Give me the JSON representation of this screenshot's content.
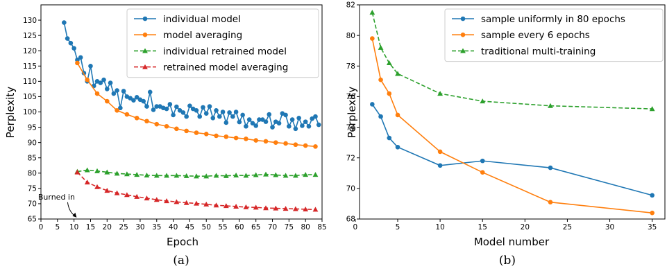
{
  "chart_data": [
    {
      "type": "line",
      "caption": "(a)",
      "xlabel": "Epoch",
      "ylabel": "Perplexity",
      "xlim": [
        0,
        85
      ],
      "ylim": [
        65,
        135
      ],
      "xticks": [
        "0",
        "5",
        "10",
        "15",
        "20",
        "25",
        "30",
        "35",
        "40",
        "45",
        "50",
        "55",
        "60",
        "65",
        "70",
        "75",
        "80",
        "85"
      ],
      "yticks": [
        "65",
        "70",
        "75",
        "80",
        "85",
        "90",
        "95",
        "100",
        "105",
        "110",
        "115",
        "120",
        "125",
        "130"
      ],
      "legend_position": "upper right",
      "annotation": {
        "text": "Burned in",
        "points_to": [
          11,
          65.5
        ]
      },
      "series": [
        {
          "name": "individual model",
          "color": "#1f77b4",
          "marker": "circle",
          "linestyle": "solid",
          "x": [
            7,
            8,
            9,
            10,
            11,
            12,
            13,
            14,
            15,
            16,
            17,
            18,
            19,
            20,
            21,
            22,
            23,
            24,
            25,
            26,
            27,
            28,
            29,
            30,
            31,
            32,
            33,
            34,
            35,
            36,
            37,
            38,
            39,
            40,
            41,
            42,
            43,
            44,
            45,
            46,
            47,
            48,
            49,
            50,
            51,
            52,
            53,
            54,
            55,
            56,
            57,
            58,
            59,
            60,
            61,
            62,
            63,
            64,
            65,
            66,
            67,
            68,
            69,
            70,
            71,
            72,
            73,
            74,
            75,
            76,
            77,
            78,
            79,
            80,
            81,
            82,
            83,
            84
          ],
          "y": [
            129.2,
            124,
            122.5,
            120.8,
            117,
            117.8,
            112.7,
            110,
            115,
            108.5,
            110,
            109.5,
            110.5,
            107.5,
            109.5,
            106,
            107,
            101.3,
            106.8,
            105,
            104.5,
            103.8,
            104.8,
            104,
            103.5,
            101.8,
            106.5,
            100.7,
            101.8,
            101.8,
            101.3,
            101,
            102.5,
            99,
            101.7,
            100.5,
            99.8,
            98.5,
            102,
            101,
            100.5,
            98.5,
            101.5,
            99.5,
            101.8,
            98,
            100.5,
            98.5,
            100,
            96.5,
            99.8,
            98.5,
            100,
            96.7,
            99,
            95.3,
            97.5,
            96.3,
            95.5,
            97.5,
            97.5,
            96.8,
            99.2,
            95,
            96.8,
            96.3,
            99.5,
            99,
            95.3,
            97.5,
            94.5,
            98,
            95.5,
            96.8,
            95.3,
            97.8,
            98.5,
            95.8
          ]
        },
        {
          "name": "model averaging",
          "color": "#ff7f0e",
          "marker": "circle",
          "linestyle": "solid",
          "x": [
            11,
            14,
            17,
            20,
            23,
            26,
            29,
            32,
            35,
            38,
            41,
            44,
            47,
            50,
            53,
            56,
            59,
            62,
            65,
            68,
            71,
            74,
            77,
            80,
            83
          ],
          "y": [
            116,
            110.5,
            106,
            103.5,
            100.5,
            99.2,
            98,
            97,
            96,
            95.3,
            94.5,
            93.8,
            93.2,
            92.8,
            92.2,
            91.9,
            91.5,
            91.2,
            90.7,
            90.4,
            90,
            89.7,
            89.3,
            89,
            88.7
          ]
        },
        {
          "name": "individual retrained model",
          "color": "#2ca02c",
          "marker": "triangle",
          "linestyle": "dashed",
          "x": [
            11,
            14,
            17,
            20,
            23,
            26,
            29,
            32,
            35,
            38,
            41,
            44,
            47,
            50,
            53,
            56,
            59,
            62,
            65,
            68,
            71,
            74,
            77,
            80,
            83
          ],
          "y": [
            80.5,
            81,
            80.7,
            80.3,
            79.9,
            79.7,
            79.5,
            79.3,
            79.2,
            79.2,
            79.2,
            79.1,
            79,
            79,
            79.2,
            79.1,
            79.3,
            79.2,
            79.4,
            79.6,
            79.4,
            79.2,
            79.2,
            79.5,
            79.5
          ]
        },
        {
          "name": "retrained model averaging",
          "color": "#d62728",
          "marker": "triangle",
          "linestyle": "dashed",
          "x": [
            11,
            14,
            17,
            20,
            23,
            26,
            29,
            32,
            35,
            38,
            41,
            44,
            47,
            50,
            53,
            56,
            59,
            62,
            65,
            68,
            71,
            74,
            77,
            80,
            83
          ],
          "y": [
            80.3,
            77,
            75.5,
            74.3,
            73.5,
            72.9,
            72.3,
            71.8,
            71.3,
            70.9,
            70.6,
            70.3,
            70.1,
            69.8,
            69.5,
            69.3,
            69.1,
            68.9,
            68.8,
            68.6,
            68.5,
            68.4,
            68.3,
            68.2,
            68.1
          ]
        }
      ]
    },
    {
      "type": "line",
      "caption": "(b)",
      "xlabel": "Model number",
      "ylabel": "Perplexity",
      "xlim": [
        0.5,
        36.5
      ],
      "ylim": [
        68,
        82
      ],
      "xticks": [
        "0",
        "5",
        "10",
        "15",
        "20",
        "25",
        "30",
        "35"
      ],
      "yticks": [
        "68",
        "70",
        "72",
        "74",
        "76",
        "78",
        "80",
        "82"
      ],
      "legend_position": "upper right",
      "series": [
        {
          "name": "sample uniformly in 80 epochs",
          "color": "#1f77b4",
          "marker": "circle",
          "linestyle": "solid",
          "x": [
            2,
            3,
            4,
            5,
            10,
            15,
            23,
            35
          ],
          "y": [
            75.5,
            74.7,
            73.3,
            72.7,
            71.5,
            71.8,
            71.35,
            69.55
          ]
        },
        {
          "name": "sample every 6 epochs",
          "color": "#ff7f0e",
          "marker": "circle",
          "linestyle": "solid",
          "x": [
            2,
            3,
            4,
            5,
            10,
            15,
            23,
            35
          ],
          "y": [
            79.8,
            77.1,
            76.2,
            74.8,
            72.4,
            71.05,
            69.1,
            68.4
          ]
        },
        {
          "name": "traditional multi-training",
          "color": "#2ca02c",
          "marker": "triangle",
          "linestyle": "dashed",
          "x": [
            2,
            3,
            4,
            5,
            10,
            15,
            23,
            35
          ],
          "y": [
            81.5,
            79.2,
            78.2,
            77.5,
            76.2,
            75.7,
            75.4,
            75.2
          ]
        }
      ]
    }
  ]
}
